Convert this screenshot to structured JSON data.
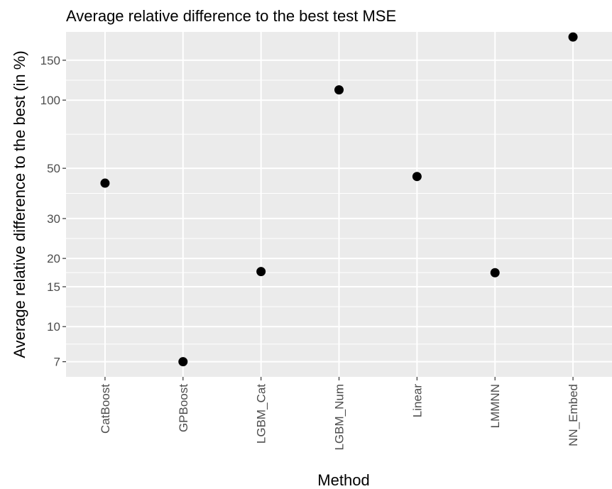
{
  "chart_data": {
    "type": "scatter",
    "title": "Average relative difference to the best test MSE",
    "xlabel": "Method",
    "ylabel": "Average relative difference to the best (in %)",
    "y_scale": "log",
    "ylim": [
      6,
      200
    ],
    "y_ticks": [
      7,
      10,
      15,
      20,
      30,
      50,
      100,
      150
    ],
    "grid": true,
    "legend": "none",
    "categories": [
      "CatBoost",
      "GPBoost",
      "LGBM_Cat",
      "LGBM_Num",
      "Linear",
      "LMMNN",
      "NN_Embed"
    ],
    "values": [
      43,
      7,
      17.5,
      111,
      46,
      17.3,
      190
    ],
    "colors": {
      "panel": "#ebebeb",
      "grid": "#ffffff",
      "point": "#000000",
      "tick": "#4d4d4d"
    }
  }
}
